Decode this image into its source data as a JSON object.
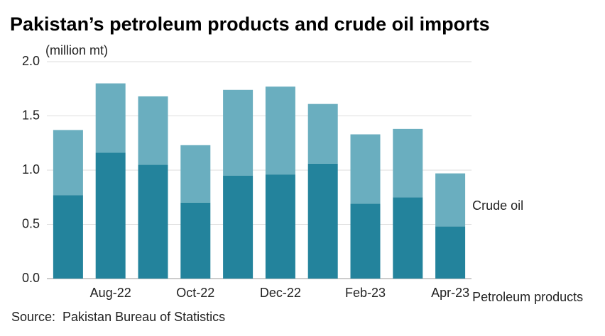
{
  "chart_data": {
    "type": "stacked_bar",
    "title": "Pakistan’s petroleum products and crude oil imports",
    "y_label": "(million mt)",
    "source": "Source:  Pakistan Bureau of Statistics",
    "categories": [
      null,
      "Aug-22",
      null,
      "Oct-22",
      null,
      "Dec-22",
      null,
      "Feb-23",
      null,
      "Apr-23"
    ],
    "series": [
      {
        "name": "Petroleum products",
        "color": "#23839c",
        "values": [
          0.77,
          1.16,
          1.05,
          0.7,
          0.95,
          0.96,
          1.06,
          0.69,
          0.75,
          0.48
        ]
      },
      {
        "name": "Crude oil",
        "color": "#6aaebf",
        "values": [
          0.6,
          0.64,
          0.63,
          0.53,
          0.79,
          0.81,
          0.55,
          0.64,
          0.63,
          0.49
        ]
      }
    ],
    "ylim": [
      0,
      2.0
    ],
    "yticks": [
      {
        "value": 0,
        "label": "0.0"
      },
      0.5,
      {
        "value": 1,
        "label": "1.0"
      },
      1.5,
      {
        "value": 2,
        "label": "2.0"
      }
    ],
    "grid": true
  }
}
